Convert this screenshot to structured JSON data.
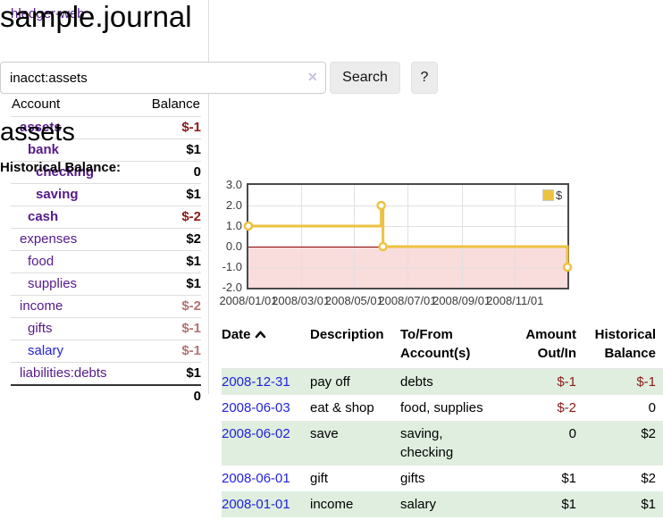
{
  "sidebar": {
    "app_title": "hledger-web",
    "journal_link": "Journal",
    "headers": {
      "account": "Account",
      "balance": "Balance"
    },
    "accounts": [
      {
        "name": "assets",
        "balance": "$-1"
      },
      {
        "name": "bank",
        "balance": "$1"
      },
      {
        "name": "checking",
        "balance": "0"
      },
      {
        "name": "saving",
        "balance": "$1"
      },
      {
        "name": "cash",
        "balance": "$-2"
      },
      {
        "name": "expenses",
        "balance": "$2"
      },
      {
        "name": "food",
        "balance": "$1"
      },
      {
        "name": "supplies",
        "balance": "$1"
      },
      {
        "name": "income",
        "balance": "$-2"
      },
      {
        "name": "gifts",
        "balance": "$-1"
      },
      {
        "name": "salary",
        "balance": "$-1"
      },
      {
        "name": "liabilities:debts",
        "balance": "$1"
      }
    ],
    "total": "0"
  },
  "header": {
    "title": "sample.journal"
  },
  "search": {
    "value": "inacct:assets",
    "clear_icon": "✕",
    "button_label": "Search",
    "help_label": "?"
  },
  "account_page": {
    "heading": "assets",
    "chart_title": "Historical Balance:"
  },
  "chart_data": {
    "type": "line",
    "step": true,
    "title": "Historical Balance:",
    "series": [
      {
        "name": "$",
        "color": "#edc240",
        "points": [
          [
            "2008-01-01",
            1
          ],
          [
            "2008-06-01",
            2
          ],
          [
            "2008-06-03",
            0
          ],
          [
            "2008-12-31",
            -1
          ]
        ]
      }
    ],
    "xlim": [
      "2008-01-01",
      "2008-12-31"
    ],
    "ylim": [
      -2,
      3
    ],
    "ytick_labels": [
      "3.0",
      "2.0",
      "1.0",
      "0.0",
      "-1.0",
      "-2.0"
    ],
    "yticks": [
      3,
      2,
      1,
      0,
      -1,
      -2
    ],
    "xticks": [
      "2008-01-01",
      "2008-03-01",
      "2008-05-01",
      "2008-07-01",
      "2008-09-01",
      "2008-11-01"
    ],
    "xtick_labels": [
      "2008/01/01",
      "2008/03/01",
      "2008/05/01",
      "2008/07/01",
      "2008/09/01",
      "2008/11/01"
    ],
    "grid": true,
    "legend_position": "top-right",
    "zero_line_color": "#8b0000",
    "negative_region_color": "#f9dcdc"
  },
  "transactions": {
    "headers": {
      "date": "Date",
      "description": "Description",
      "tofrom_line1": "To/From",
      "tofrom_line2": "Account(s)",
      "amount_line1": "Amount",
      "amount_line2": "Out/In",
      "balance_line1": "Historical",
      "balance_line2": "Balance"
    },
    "rows": [
      {
        "date": "2008-12-31",
        "description": "pay off",
        "accounts": "debts",
        "amount": "$-1",
        "balance": "$-1"
      },
      {
        "date": "2008-06-03",
        "description": "eat & shop",
        "accounts": "food, supplies",
        "amount": "$-2",
        "balance": "0"
      },
      {
        "date": "2008-06-02",
        "description": "save",
        "accounts": "saving, checking",
        "amount": "0",
        "balance": "$2"
      },
      {
        "date": "2008-06-01",
        "description": "gift",
        "accounts": "gifts",
        "amount": "$1",
        "balance": "$2"
      },
      {
        "date": "2008-01-01",
        "description": "income",
        "accounts": "salary",
        "amount": "$1",
        "balance": "$1"
      }
    ]
  },
  "colors": {
    "link_purple": "#551a8b",
    "link_blue": "#2222dd",
    "negative_strong": "#8b1a1a",
    "negative_soft": "#b37474",
    "row_stripe_green": "#dfeedf",
    "series_yellow": "#edc240",
    "negative_fill_pink": "#f9dcdc",
    "zero_line": "#8b0000"
  }
}
